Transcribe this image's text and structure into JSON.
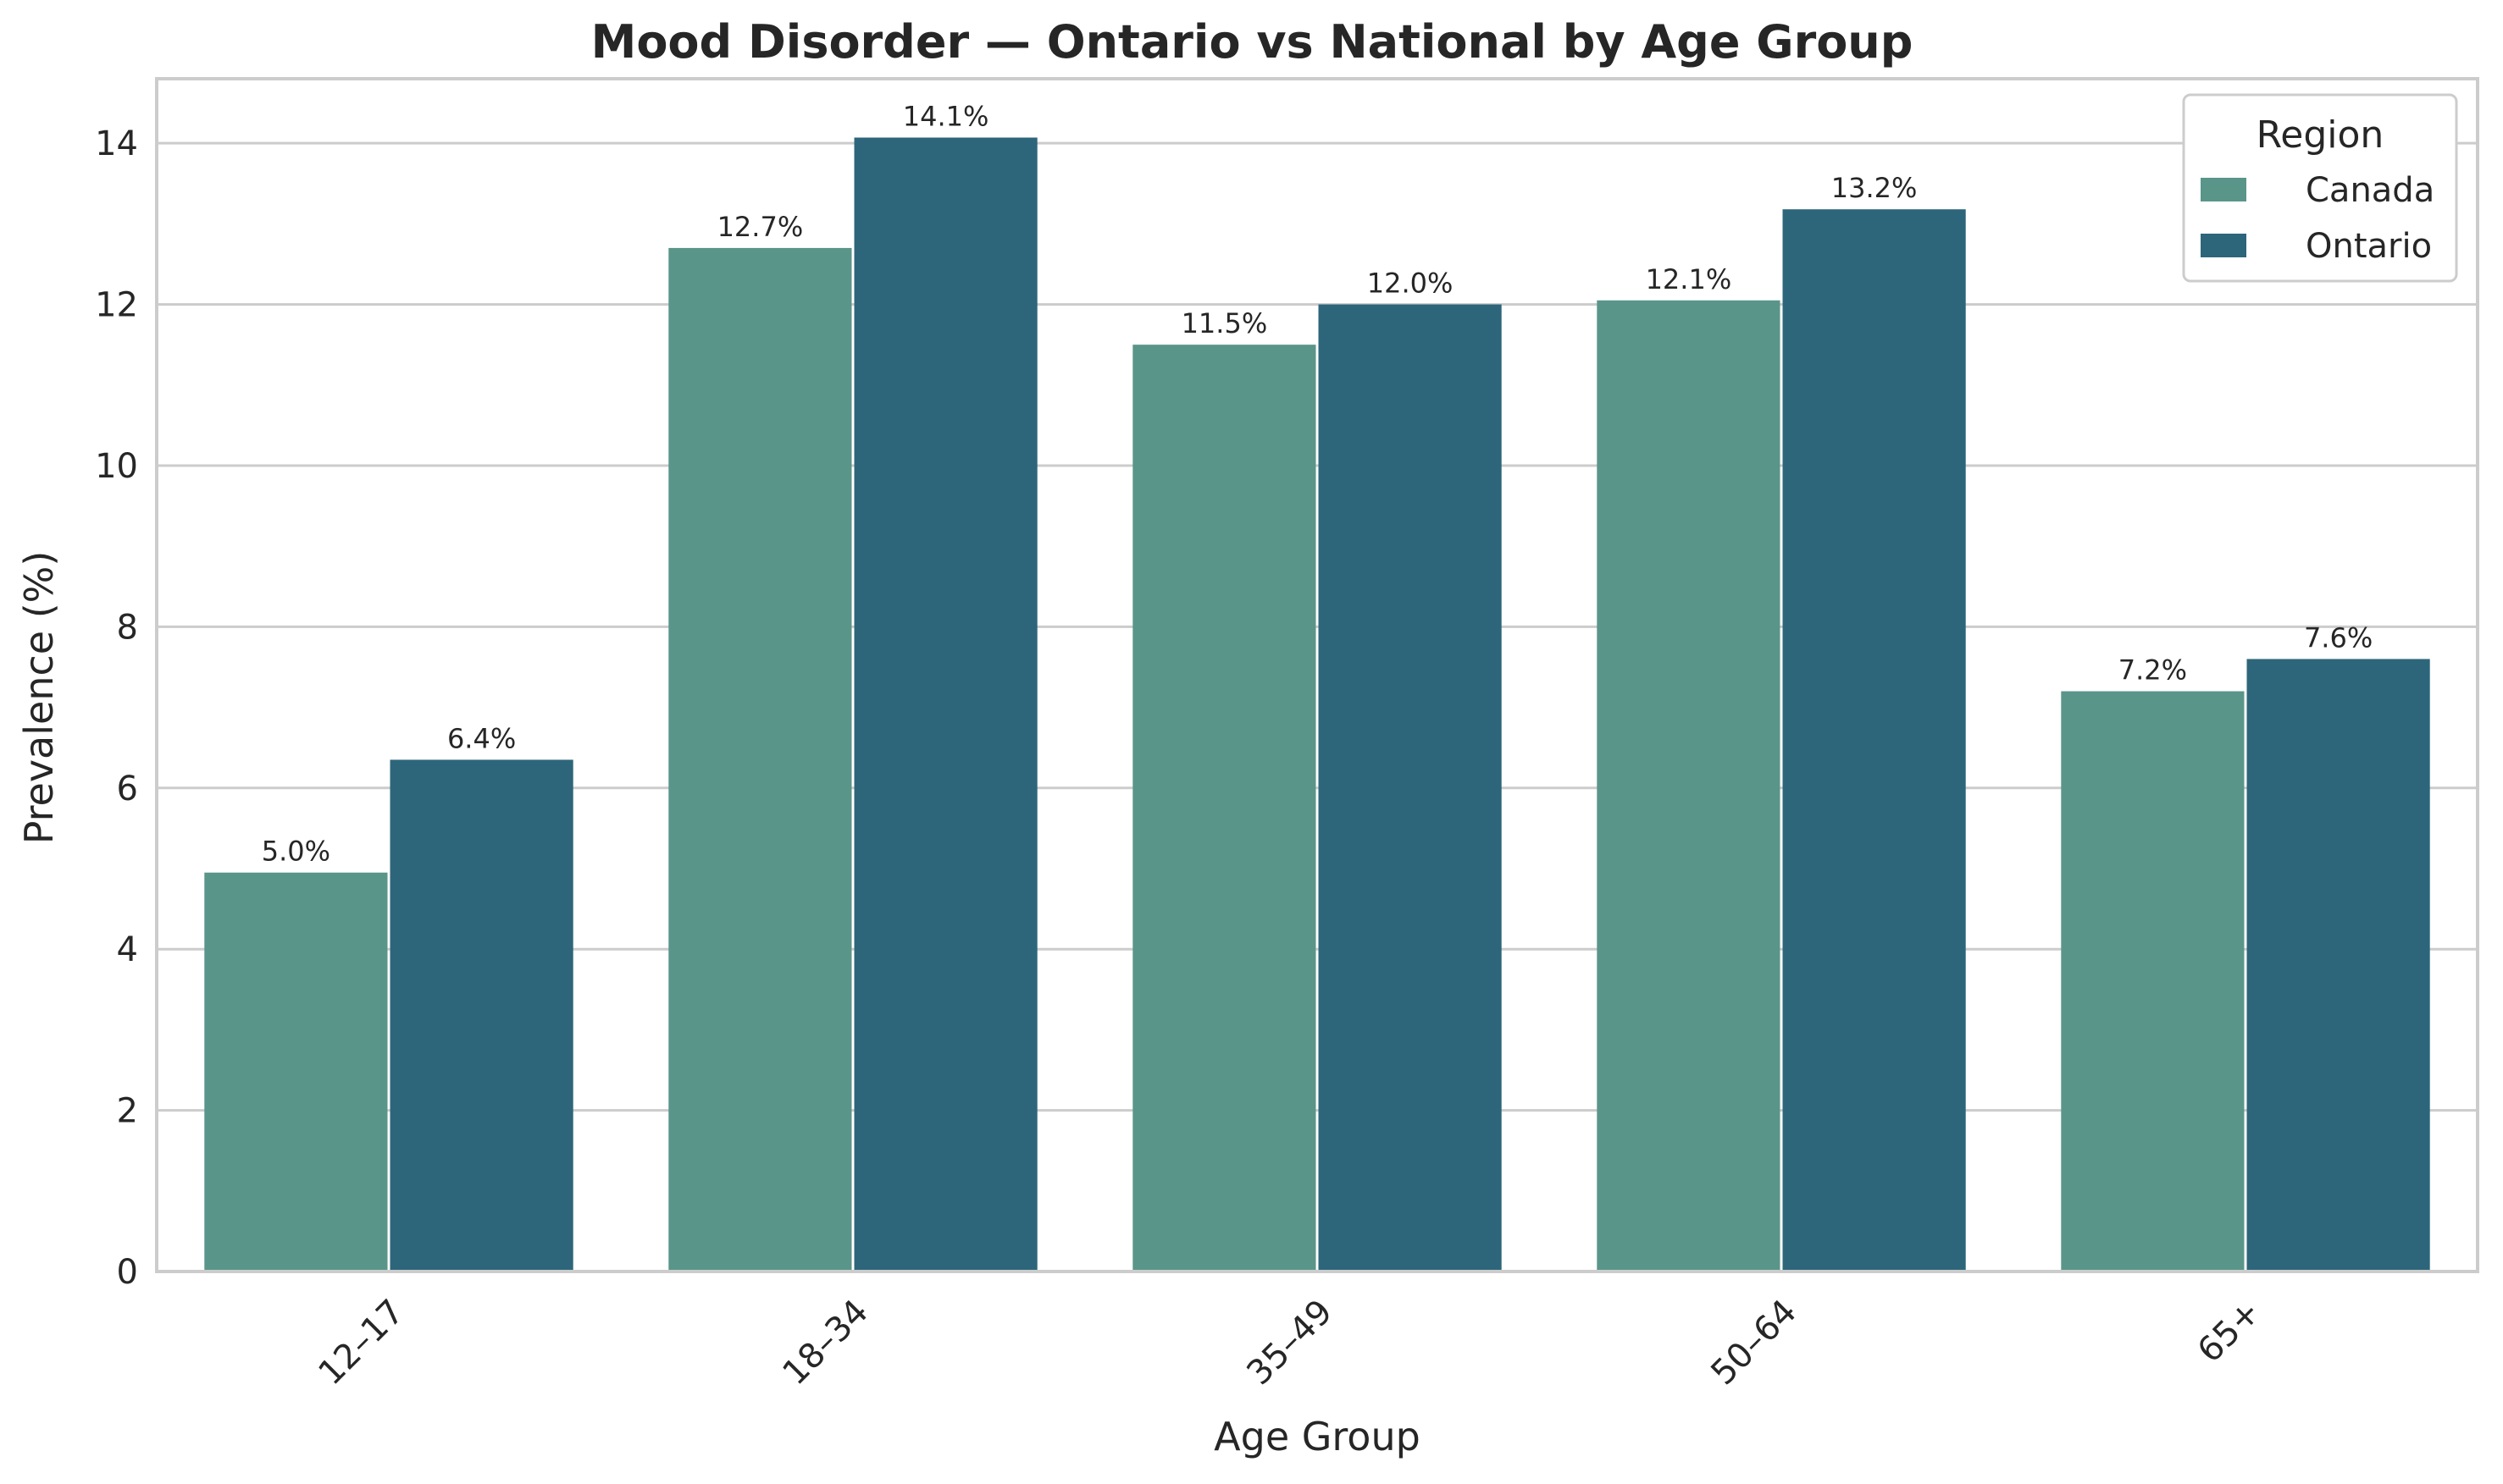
{
  "chart_data": {
    "type": "bar",
    "title": "Mood Disorder — Ontario vs National by Age Group",
    "xlabel": "Age Group",
    "ylabel": "Prevalence (%)",
    "categories": [
      "12–17",
      "18–34",
      "35–49",
      "50–64",
      "65+"
    ],
    "series": [
      {
        "name": "Canada",
        "color": "#5a9589",
        "values": [
          4.95,
          12.7,
          11.5,
          12.05,
          7.2
        ],
        "labels": [
          "5.0%",
          "12.7%",
          "11.5%",
          "12.1%",
          "7.2%"
        ]
      },
      {
        "name": "Ontario",
        "color": "#2d667a",
        "values": [
          6.35,
          14.07,
          12.0,
          13.18,
          7.6
        ],
        "labels": [
          "6.4%",
          "14.1%",
          "12.0%",
          "13.2%",
          "7.6%"
        ]
      }
    ],
    "ylim": [
      0,
      14.8
    ],
    "yticks": [
      0,
      2,
      4,
      6,
      8,
      10,
      12,
      14
    ],
    "ytick_labels": [
      "0",
      "2",
      "4",
      "6",
      "8",
      "10",
      "12",
      "14"
    ],
    "grid": "horizontal",
    "legend": {
      "title": "Region",
      "position": "top-right"
    }
  }
}
